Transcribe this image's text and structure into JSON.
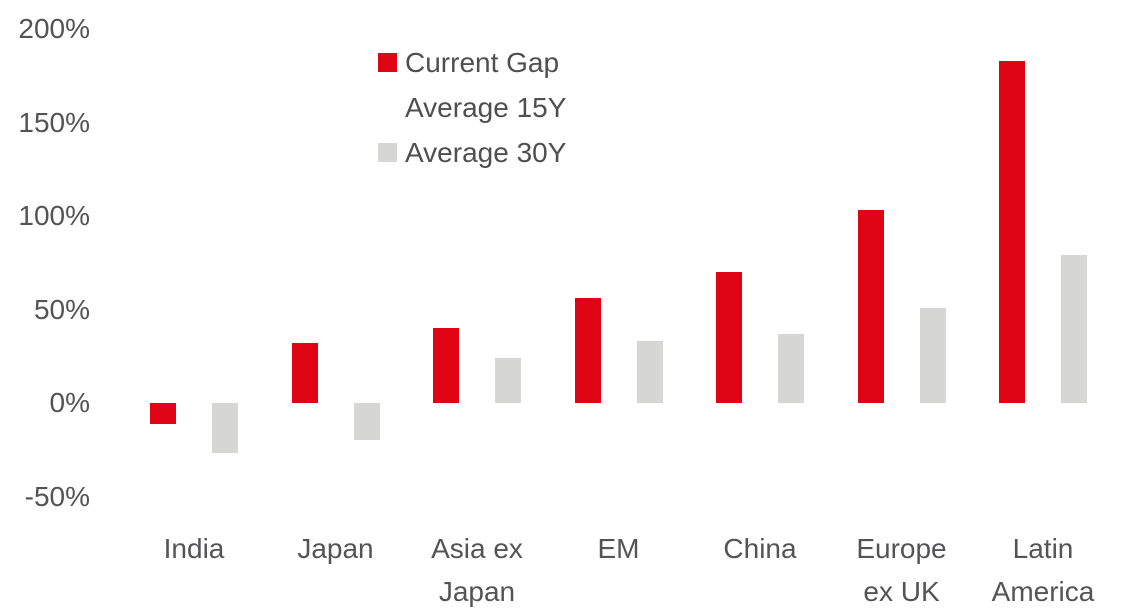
{
  "colors": {
    "background": "#ffffff",
    "text": "#545456",
    "current_gap_red": "#e00514",
    "average_15y_white": "#ffffff",
    "average_30y_gray": "#d6d6d4"
  },
  "legend": {
    "items": [
      {
        "label": "Current Gap",
        "color": "#e00514"
      },
      {
        "label": "Average 15Y",
        "color": "#ffffff"
      },
      {
        "label": "Average 30Y",
        "color": "#d6d6d4"
      }
    ]
  },
  "chart_data": {
    "type": "bar",
    "title": "",
    "xlabel": "",
    "ylabel": "",
    "grid": false,
    "legend_position": "top-center",
    "ylim": [
      -50,
      200
    ],
    "y_ticks": [
      "200%",
      "150%",
      "100%",
      "50%",
      "0%",
      "-50%"
    ],
    "y_tick_values": [
      200,
      150,
      100,
      50,
      0,
      -50
    ],
    "categories": [
      "India",
      "Japan",
      "Asia ex Japan",
      "EM",
      "China",
      "Europe ex UK",
      "Latin America"
    ],
    "category_label_lines": [
      [
        "India"
      ],
      [
        "Japan"
      ],
      [
        "Asia ex",
        "Japan"
      ],
      [
        "EM"
      ],
      [
        "China"
      ],
      [
        "Europe",
        "ex UK"
      ],
      [
        "Latin",
        "America"
      ]
    ],
    "series": [
      {
        "name": "Current Gap",
        "color": "#e00514",
        "values": [
          -11,
          32,
          40,
          56,
          70,
          103,
          183
        ]
      },
      {
        "name": "Average 15Y",
        "color": "#ffffff",
        "values": [
          null,
          null,
          null,
          null,
          null,
          null,
          null
        ]
      },
      {
        "name": "Average 30Y",
        "color": "#d6d6d4",
        "values": [
          -27,
          -20,
          24,
          33,
          37,
          51,
          79
        ]
      }
    ]
  }
}
